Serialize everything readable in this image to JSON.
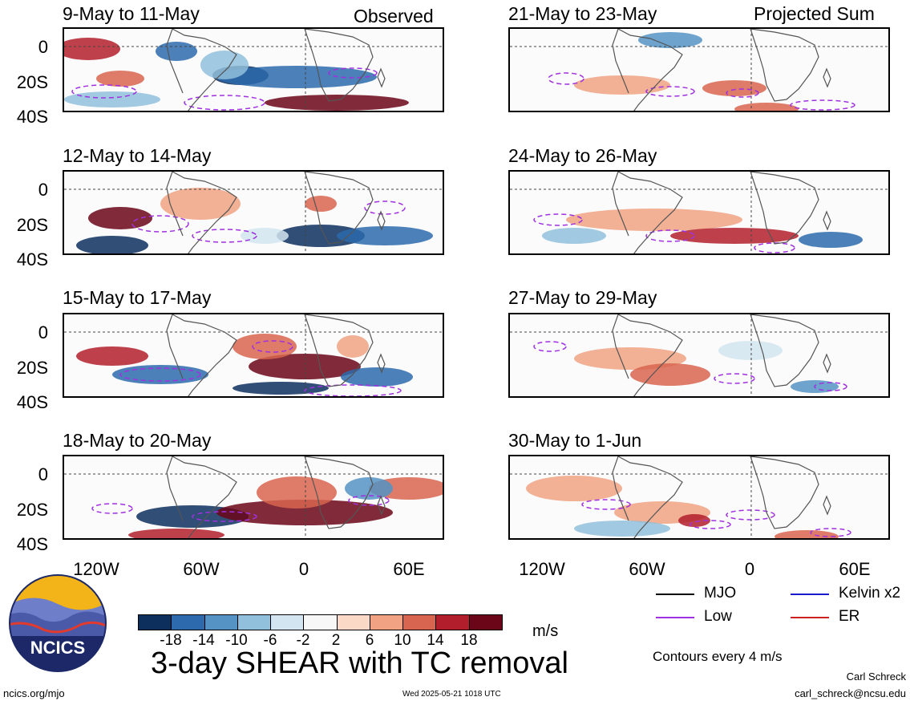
{
  "header": {
    "observed": "Observed",
    "projected": "Projected Sum"
  },
  "panels": [
    {
      "title": "9-May to 11-May",
      "group": "observed"
    },
    {
      "title": "12-May to 14-May",
      "group": "observed"
    },
    {
      "title": "15-May to 17-May",
      "group": "observed"
    },
    {
      "title": "18-May to 20-May",
      "group": "observed"
    },
    {
      "title": "21-May to 23-May",
      "group": "projected"
    },
    {
      "title": "24-May to 26-May",
      "group": "projected"
    },
    {
      "title": "27-May to 29-May",
      "group": "projected"
    },
    {
      "title": "30-May to 1-Jun",
      "group": "projected"
    }
  ],
  "y_ticks": [
    "0",
    "20S",
    "40S"
  ],
  "x_ticks": [
    "120W",
    "60W",
    "0",
    "60E"
  ],
  "colorbar": {
    "colors": [
      "#0d2f5e",
      "#2c6aad",
      "#5493c4",
      "#91c0dc",
      "#d2e5f0",
      "#f7f7f7",
      "#fbd9c7",
      "#f0a282",
      "#d8654f",
      "#b31e2c",
      "#6b0618"
    ],
    "labels": [
      "-18",
      "-14",
      "-10",
      "-6",
      "-2",
      "2",
      "6",
      "10",
      "14",
      "18"
    ],
    "unit": "m/s"
  },
  "title": "3-day SHEAR with TC removal",
  "legend": [
    {
      "label": "MJO",
      "color": "#000000"
    },
    {
      "label": "Kelvin x2",
      "color": "#1a1acc"
    },
    {
      "label": "Low",
      "color": "#a030e0"
    },
    {
      "label": "ER",
      "color": "#cc2222"
    }
  ],
  "contour_note": "Contours every 4 m/s",
  "logo_text": "NCICS",
  "footer": {
    "left": "ncics.org/mjo",
    "timestamp": "Wed 2025-05-21 1018 UTC",
    "author": "Carl Schreck",
    "email": "carl_schreck@ncsu.edu"
  },
  "chart_data": {
    "type": "heatmap",
    "title": "3-day SHEAR with TC removal",
    "panel_titles": [
      "9-May to 11-May",
      "12-May to 14-May",
      "15-May to 17-May",
      "18-May to 20-May",
      "21-May to 23-May",
      "24-May to 26-May",
      "27-May to 29-May",
      "30-May to 1-Jun"
    ],
    "x_range": [
      "150W",
      "90E"
    ],
    "y_range": [
      "10N",
      "40S"
    ],
    "x_ticks": [
      "120W",
      "60W",
      "0",
      "60E"
    ],
    "y_ticks": [
      "0",
      "20S",
      "40S"
    ],
    "colorbar_levels": [
      -18,
      -14,
      -10,
      -6,
      -2,
      2,
      6,
      10,
      14,
      18
    ],
    "unit": "m/s",
    "contour_interval": "4 m/s",
    "contour_series": [
      "MJO",
      "Kelvin x2",
      "Low",
      "ER"
    ]
  }
}
